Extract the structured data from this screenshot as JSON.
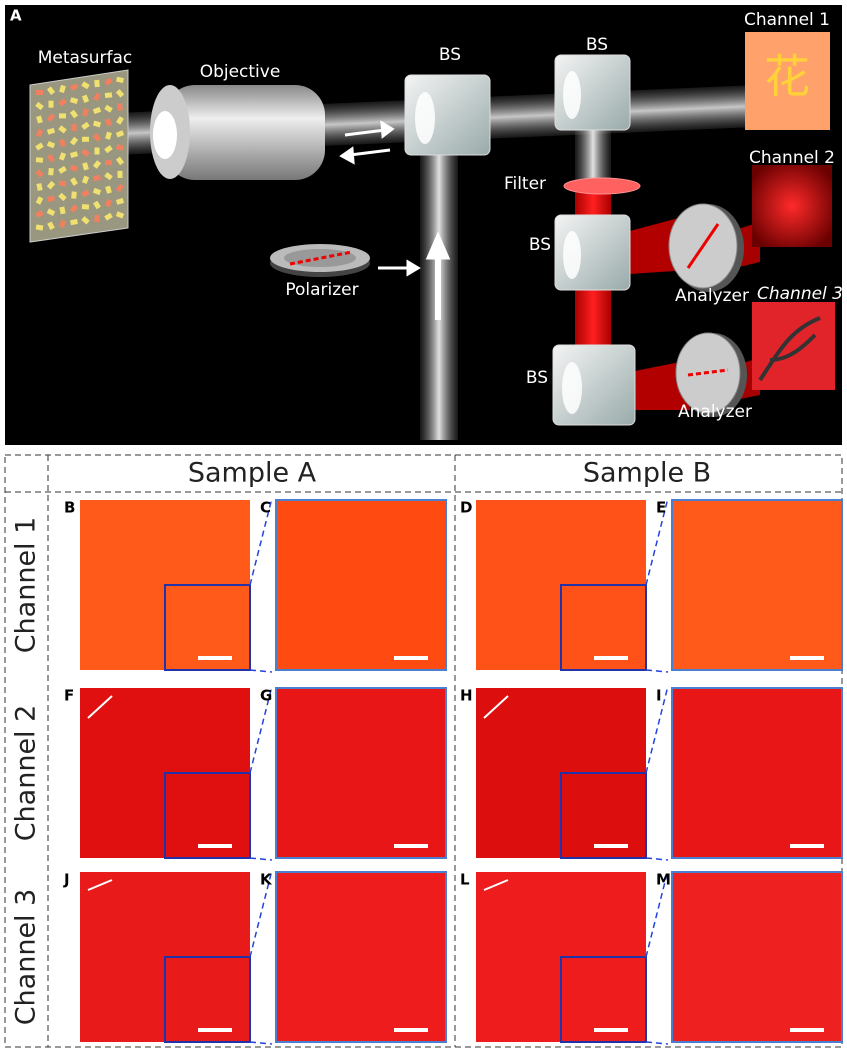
{
  "panel_a": {
    "label": "A",
    "metasurface": "Metasurfac",
    "objective": "Objective",
    "beam_splitters": [
      "BS",
      "BS",
      "BS",
      "BS"
    ],
    "filter": "Filter",
    "polarizer": "Polarizer",
    "analyzers": [
      "Analyzer",
      "Analyzer"
    ],
    "channels": [
      "Channel 1",
      "Channel 2",
      "Channel 3"
    ],
    "hanzi": "花"
  },
  "grid": {
    "columns": [
      "Sample A",
      "Sample B"
    ],
    "rows": [
      "Channel 1",
      "Channel 2",
      "Channel 3"
    ],
    "panel_labels": [
      [
        "B",
        "C",
        "D",
        "E"
      ],
      [
        "F",
        "G",
        "H",
        "I"
      ],
      [
        "J",
        "K",
        "L",
        "M"
      ]
    ]
  }
}
